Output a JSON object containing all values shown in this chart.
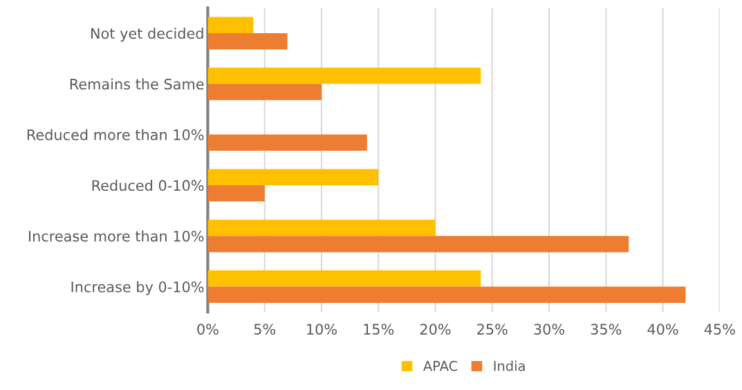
{
  "chart_data": {
    "type": "bar",
    "orientation": "horizontal",
    "categories": [
      "Not yet decided",
      "Remains the Same",
      "Reduced more than 10%",
      "Reduced 0-10%",
      "Increase more than 10%",
      "Increase by 0-10%"
    ],
    "series": [
      {
        "name": "APAC",
        "color": "#ffc000",
        "values": [
          4,
          24,
          0,
          15,
          20,
          24
        ]
      },
      {
        "name": "India",
        "color": "#ed7d31",
        "values": [
          7,
          10,
          14,
          5,
          37,
          42
        ]
      }
    ],
    "xlim": [
      0,
      45
    ],
    "xticks": [
      {
        "value": 0,
        "label": "0%"
      },
      {
        "value": 5,
        "label": "5%"
      },
      {
        "value": 10,
        "label": "10%"
      },
      {
        "value": 15,
        "label": "15%"
      },
      {
        "value": 20,
        "label": "20%"
      },
      {
        "value": 25,
        "label": "25%"
      },
      {
        "value": 30,
        "label": "30%"
      },
      {
        "value": 35,
        "label": "35%"
      },
      {
        "value": 40,
        "label": "40%"
      },
      {
        "value": 45,
        "label": "45%"
      }
    ],
    "grid": "x",
    "legend": "bottom"
  }
}
